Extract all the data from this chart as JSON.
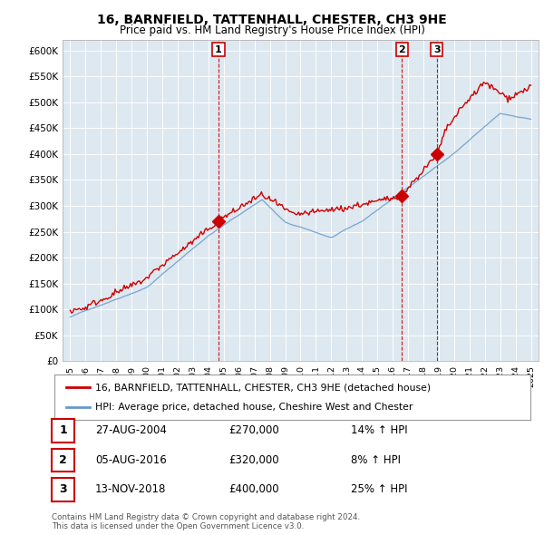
{
  "title": "16, BARNFIELD, TATTENHALL, CHESTER, CH3 9HE",
  "subtitle": "Price paid vs. HM Land Registry's House Price Index (HPI)",
  "legend_label_red": "16, BARNFIELD, TATTENHALL, CHESTER, CH3 9HE (detached house)",
  "legend_label_blue": "HPI: Average price, detached house, Cheshire West and Chester",
  "footer1": "Contains HM Land Registry data © Crown copyright and database right 2024.",
  "footer2": "This data is licensed under the Open Government Licence v3.0.",
  "sale_markers": [
    {
      "label": "1",
      "date": "27-AUG-2004",
      "price": "£270,000",
      "hpi": "14% ↑ HPI",
      "x_year": 2004.65,
      "y_val": 270000
    },
    {
      "label": "2",
      "date": "05-AUG-2016",
      "price": "£320,000",
      "hpi": "8% ↑ HPI",
      "x_year": 2016.6,
      "y_val": 320000
    },
    {
      "label": "3",
      "date": "13-NOV-2018",
      "price": "£400,000",
      "hpi": "25% ↑ HPI",
      "x_year": 2018.87,
      "y_val": 400000
    }
  ],
  "ylim": [
    0,
    620000
  ],
  "xlim_start": 1994.5,
  "xlim_end": 2025.5,
  "yticks": [
    0,
    50000,
    100000,
    150000,
    200000,
    250000,
    300000,
    350000,
    400000,
    450000,
    500000,
    550000,
    600000
  ],
  "ytick_labels": [
    "£0",
    "£50K",
    "£100K",
    "£150K",
    "£200K",
    "£250K",
    "£300K",
    "£350K",
    "£400K",
    "£450K",
    "£500K",
    "£550K",
    "£600K"
  ],
  "chart_bg_color": "#dde8f0",
  "background_color": "#ffffff",
  "grid_color": "#ffffff",
  "red_color": "#cc0000",
  "blue_color": "#6699cc",
  "marker_color": "#cc0000"
}
